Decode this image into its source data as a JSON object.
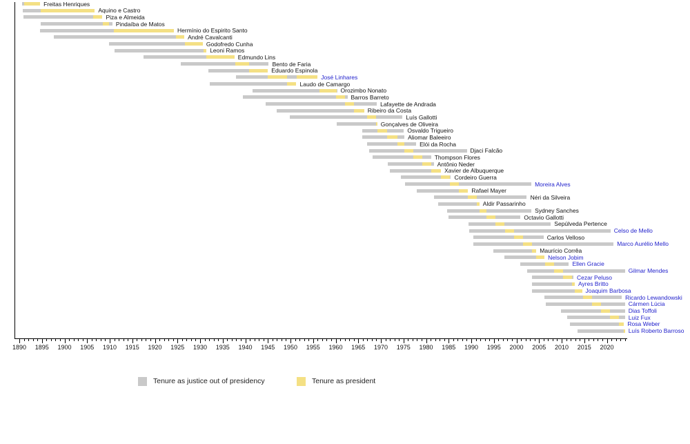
{
  "chart_data": {
    "type": "bar",
    "subtype": "gantt-timeline",
    "title": "",
    "xlabel": "",
    "ylabel": "",
    "x_axis": {
      "min": 1890,
      "max": 2024,
      "minor_tick_step": 1,
      "major_tick_step": 5,
      "tick_labels": [
        1890,
        1895,
        1900,
        1905,
        1910,
        1915,
        1920,
        1925,
        1930,
        1935,
        1940,
        1945,
        1950,
        1955,
        1960,
        1965,
        1970,
        1975,
        1980,
        1985,
        1990,
        1995,
        2000,
        2005,
        2010,
        2015,
        2020
      ]
    },
    "legend": [
      {
        "label": "Tenure as justice out of presidency",
        "color": "#c9c9c9"
      },
      {
        "label": "Tenure as president",
        "color": "#f4e084"
      }
    ],
    "legend_position": "bottom",
    "grid": false,
    "colors": {
      "justice_bar": "#c9c9c9",
      "president_bar": "#f4e084",
      "name_text": "#111111",
      "highlight_name_text": "#2222cc",
      "axis": "#000000"
    },
    "justices": [
      {
        "name": "Freitas Henriques",
        "highlight": false,
        "tenure": [
          1890.6,
          1894.6
        ],
        "presidency": [
          [
            1891.0,
            1894.6
          ]
        ]
      },
      {
        "name": "Aquino e Castro",
        "highlight": false,
        "tenure": [
          1890.7,
          1906.7
        ],
        "presidency": [
          [
            1894.7,
            1906.7
          ]
        ]
      },
      {
        "name": "Piza e Almeida",
        "highlight": false,
        "tenure": [
          1890.9,
          1908.4
        ],
        "presidency": [
          [
            1906.4,
            1908.4
          ]
        ]
      },
      {
        "name": "Pindaíba de Matos",
        "highlight": false,
        "tenure": [
          1894.7,
          1910.6
        ],
        "presidency": [
          [
            1908.4,
            1909.9
          ]
        ]
      },
      {
        "name": "Hermínio do Espirito Santo",
        "highlight": false,
        "tenure": [
          1894.6,
          1924.2
        ],
        "presidency": [
          [
            1910.9,
            1924.2
          ]
        ]
      },
      {
        "name": "André Cavalcanti",
        "highlight": false,
        "tenure": [
          1897.6,
          1926.5
        ],
        "presidency": [
          [
            1924.6,
            1926.5
          ]
        ]
      },
      {
        "name": "Godofredo Cunha",
        "highlight": false,
        "tenure": [
          1909.9,
          1930.6
        ],
        "presidency": [
          [
            1926.6,
            1930.6
          ]
        ]
      },
      {
        "name": "Leoni Ramos",
        "highlight": false,
        "tenure": [
          1911.0,
          1931.4
        ],
        "presidency": [
          [
            1930.7,
            1931.4
          ]
        ]
      },
      {
        "name": "Edmundo Lins",
        "highlight": false,
        "tenure": [
          1917.5,
          1937.6
        ],
        "presidency": [
          [
            1931.4,
            1937.6
          ]
        ]
      },
      {
        "name": "Bento de Faria",
        "highlight": false,
        "tenure": [
          1925.7,
          1945.2
        ],
        "presidency": [
          [
            1937.8,
            1940.9
          ]
        ]
      },
      {
        "name": "Eduardo Espinola",
        "highlight": false,
        "tenure": [
          1931.8,
          1945.0
        ],
        "presidency": [
          [
            1940.9,
            1945.0
          ]
        ]
      },
      {
        "name": "José Linhares",
        "highlight": true,
        "tenure": [
          1937.9,
          1956.0
        ],
        "presidency": [
          [
            1945.0,
            1949.3
          ],
          [
            1951.3,
            1956.0
          ]
        ]
      },
      {
        "name": "Laudo de Camargo",
        "highlight": false,
        "tenure": [
          1932.2,
          1951.3
        ],
        "presidency": [
          [
            1949.3,
            1951.3
          ]
        ]
      },
      {
        "name": "Orozimbo Nonato",
        "highlight": false,
        "tenure": [
          1941.6,
          1960.3
        ],
        "presidency": [
          [
            1956.4,
            1960.3
          ]
        ]
      },
      {
        "name": "Barros Barreto",
        "highlight": false,
        "tenure": [
          1939.4,
          1962.6
        ],
        "presidency": [
          [
            1960.0,
            1962.0
          ]
        ]
      },
      {
        "name": "Lafayette de Andrada",
        "highlight": false,
        "tenure": [
          1944.5,
          1969.1
        ],
        "presidency": [
          [
            1962.0,
            1964.1
          ]
        ]
      },
      {
        "name": "Ribeiro da Costa",
        "highlight": false,
        "tenure": [
          1946.9,
          1966.3
        ],
        "presidency": [
          [
            1964.1,
            1966.3
          ]
        ]
      },
      {
        "name": "Luís Gallotti",
        "highlight": false,
        "tenure": [
          1949.8,
          1974.8
        ],
        "presidency": [
          [
            1966.9,
            1968.9
          ]
        ]
      },
      {
        "name": "Gonçalves de Oliveira",
        "highlight": false,
        "tenure": [
          1960.2,
          1969.2
        ],
        "presidency": [
          [
            1968.9,
            1969.2
          ]
        ]
      },
      {
        "name": "Osvaldo Trigueiro",
        "highlight": false,
        "tenure": [
          1965.9,
          1975.1
        ],
        "presidency": [
          [
            1969.2,
            1971.3
          ]
        ]
      },
      {
        "name": "Aliomar Baleeiro",
        "highlight": false,
        "tenure": [
          1965.9,
          1975.2
        ],
        "presidency": [
          [
            1971.3,
            1973.6
          ]
        ]
      },
      {
        "name": "Elói da Rocha",
        "highlight": false,
        "tenure": [
          1966.9,
          1977.8
        ],
        "presidency": [
          [
            1973.6,
            1975.2
          ]
        ]
      },
      {
        "name": "Djaci Falcão",
        "highlight": false,
        "tenure": [
          1967.4,
          1989.0
        ],
        "presidency": [
          [
            1975.2,
            1977.2
          ]
        ]
      },
      {
        "name": "Thompson Flores",
        "highlight": false,
        "tenure": [
          1968.2,
          1981.1
        ],
        "presidency": [
          [
            1977.2,
            1979.1
          ]
        ]
      },
      {
        "name": "Antônio Neder",
        "highlight": false,
        "tenure": [
          1971.5,
          1981.7
        ],
        "presidency": [
          [
            1979.1,
            1981.1
          ]
        ]
      },
      {
        "name": "Xavier de Albuquerque",
        "highlight": false,
        "tenure": [
          1972.0,
          1983.3
        ],
        "presidency": [
          [
            1981.1,
            1983.3
          ]
        ]
      },
      {
        "name": "Cordeiro Guerra",
        "highlight": false,
        "tenure": [
          1974.4,
          1985.5
        ],
        "presidency": [
          [
            1983.3,
            1985.3
          ]
        ]
      },
      {
        "name": "Moreira Alves",
        "highlight": true,
        "tenure": [
          1975.3,
          2003.3
        ],
        "presidency": [
          [
            1985.3,
            1987.3
          ]
        ]
      },
      {
        "name": "Rafael Mayer",
        "highlight": false,
        "tenure": [
          1978.0,
          1989.3
        ],
        "presidency": [
          [
            1987.3,
            1989.2
          ]
        ]
      },
      {
        "name": "Néri da Silveira",
        "highlight": false,
        "tenure": [
          1981.7,
          2002.3
        ],
        "presidency": [
          [
            1989.2,
            1991.2
          ]
        ]
      },
      {
        "name": "Aldir Passarinho",
        "highlight": false,
        "tenure": [
          1982.7,
          1991.8
        ],
        "presidency": [
          [
            1991.2,
            1991.8
          ]
        ]
      },
      {
        "name": "Sydney Sanches",
        "highlight": false,
        "tenure": [
          1984.6,
          2003.3
        ],
        "presidency": [
          [
            1991.8,
            1993.4
          ]
        ]
      },
      {
        "name": "Octavio Gallotti",
        "highlight": false,
        "tenure": [
          1984.9,
          2000.9
        ],
        "presidency": [
          [
            1993.4,
            1995.4
          ]
        ]
      },
      {
        "name": "Sepúlveda Pertence",
        "highlight": false,
        "tenure": [
          1989.4,
          2007.6
        ],
        "presidency": [
          [
            1995.4,
            1997.4
          ]
        ]
      },
      {
        "name": "Celso de Mello",
        "highlight": true,
        "tenure": [
          1989.6,
          2020.8
        ],
        "presidency": [
          [
            1997.4,
            1999.4
          ]
        ]
      },
      {
        "name": "Carlos Velloso",
        "highlight": false,
        "tenure": [
          1990.4,
          2006.0
        ],
        "presidency": [
          [
            1999.4,
            2001.4
          ]
        ]
      },
      {
        "name": "Marco Aurélio Mello",
        "highlight": true,
        "tenure": [
          1990.4,
          2021.5
        ],
        "presidency": [
          [
            2001.4,
            2003.4
          ]
        ]
      },
      {
        "name": "Maurício Corrêa",
        "highlight": false,
        "tenure": [
          1994.9,
          2004.4
        ],
        "presidency": [
          [
            2003.4,
            2004.4
          ]
        ]
      },
      {
        "name": "Nelson Jobim",
        "highlight": true,
        "tenure": [
          1997.3,
          2006.2
        ],
        "presidency": [
          [
            2004.4,
            2006.2
          ]
        ]
      },
      {
        "name": "Ellen Gracie",
        "highlight": true,
        "tenure": [
          2000.9,
          2011.6
        ],
        "presidency": [
          [
            2006.3,
            2008.3
          ]
        ]
      },
      {
        "name": "Gilmar Mendes",
        "highlight": true,
        "tenure": [
          2002.4,
          2024.0
        ],
        "presidency": [
          [
            2008.3,
            2010.3
          ]
        ]
      },
      {
        "name": "Cezar Peluso",
        "highlight": true,
        "tenure": [
          2003.4,
          2012.6
        ],
        "presidency": [
          [
            2010.3,
            2012.3
          ]
        ]
      },
      {
        "name": "Ayres Britto",
        "highlight": true,
        "tenure": [
          2003.4,
          2012.9
        ],
        "presidency": [
          [
            2012.3,
            2012.9
          ]
        ]
      },
      {
        "name": "Joaquim Barbosa",
        "highlight": true,
        "tenure": [
          2003.4,
          2014.5
        ],
        "presidency": [
          [
            2012.9,
            2014.5
          ]
        ]
      },
      {
        "name": "Ricardo Lewandowski",
        "highlight": true,
        "tenure": [
          2006.2,
          2023.3
        ],
        "presidency": [
          [
            2014.7,
            2016.7
          ]
        ]
      },
      {
        "name": "Cármen Lúcia",
        "highlight": true,
        "tenure": [
          2006.5,
          2024.0
        ],
        "presidency": [
          [
            2016.7,
            2018.7
          ]
        ]
      },
      {
        "name": "Dias Toffoli",
        "highlight": true,
        "tenure": [
          2009.8,
          2024.0
        ],
        "presidency": [
          [
            2018.7,
            2020.7
          ]
        ]
      },
      {
        "name": "Luiz Fux",
        "highlight": true,
        "tenure": [
          2011.2,
          2024.0
        ],
        "presidency": [
          [
            2020.7,
            2022.7
          ]
        ]
      },
      {
        "name": "Rosa Weber",
        "highlight": true,
        "tenure": [
          2011.9,
          2023.8
        ],
        "presidency": [
          [
            2022.7,
            2023.8
          ]
        ]
      },
      {
        "name": "Luís Roberto Barroso",
        "highlight": true,
        "tenure": [
          2013.5,
          2024.0
        ],
        "presidency": [
          [
            2023.8,
            2024.0
          ]
        ]
      }
    ]
  }
}
